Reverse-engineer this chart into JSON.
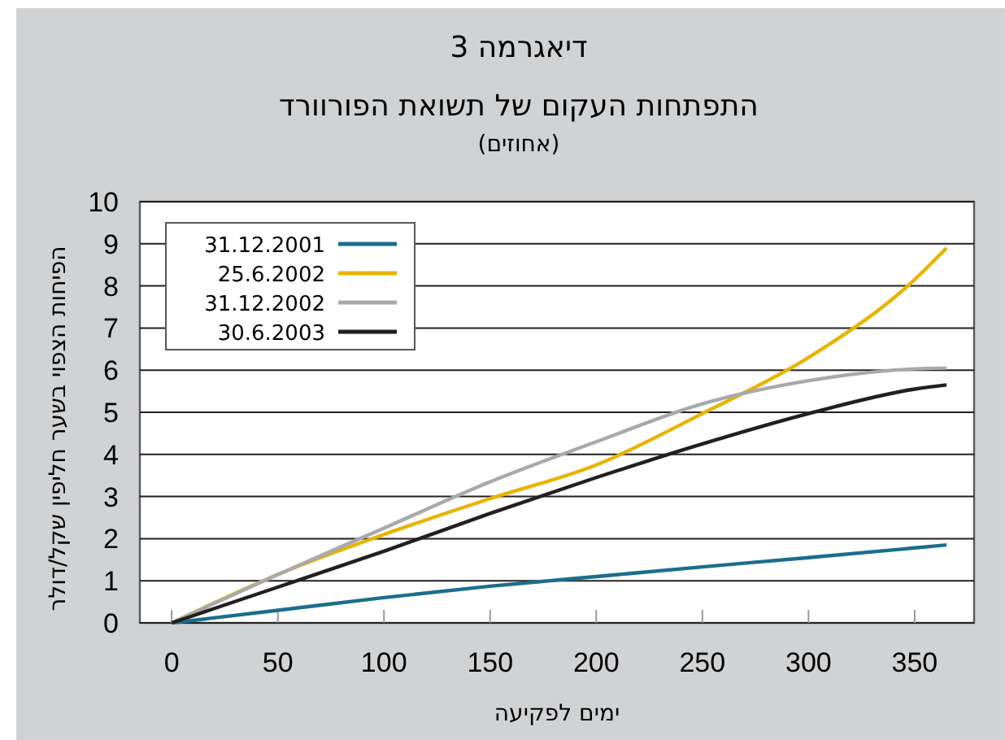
{
  "chart_data": {
    "type": "line",
    "title": "דיאגרמה 3",
    "subtitle": "התפתחות העקום של תשואת הפורוורד",
    "annotations": [
      "(אחוזים)"
    ],
    "xlabel": "ימים לפקיעה",
    "ylabel": "הפיחות הצפוי בשער חליפין שקל/דולר",
    "x": [
      0,
      50,
      100,
      150,
      200,
      250,
      300,
      350,
      365
    ],
    "xlim": [
      -15,
      378
    ],
    "xticks": [
      0,
      50,
      100,
      150,
      200,
      250,
      300,
      350
    ],
    "ylim": [
      0,
      10
    ],
    "yticks": [
      0,
      1,
      2,
      3,
      4,
      5,
      6,
      7,
      8,
      9,
      10
    ],
    "grid": "y",
    "legend": "top left",
    "marker": "none",
    "line_style": "solid",
    "series": [
      {
        "name": "31.12.2001",
        "color": "#1a6e8c",
        "values": [
          0,
          0.3,
          0.6,
          0.87,
          1.1,
          1.33,
          1.55,
          1.78,
          1.85
        ]
      },
      {
        "name": "25.6.2002",
        "color": "#e8b400",
        "values": [
          0,
          1.15,
          2.1,
          2.95,
          3.75,
          4.97,
          6.3,
          8.15,
          8.9
        ]
      },
      {
        "name": "31.12.2002",
        "color": "#a7a9ac",
        "values": [
          0,
          1.15,
          2.25,
          3.35,
          4.3,
          5.2,
          5.75,
          6.03,
          6.05
        ]
      },
      {
        "name": "30.6.2003",
        "color": "#231f20",
        "values": [
          0,
          0.85,
          1.7,
          2.6,
          3.45,
          4.25,
          4.97,
          5.55,
          5.65
        ]
      }
    ]
  }
}
